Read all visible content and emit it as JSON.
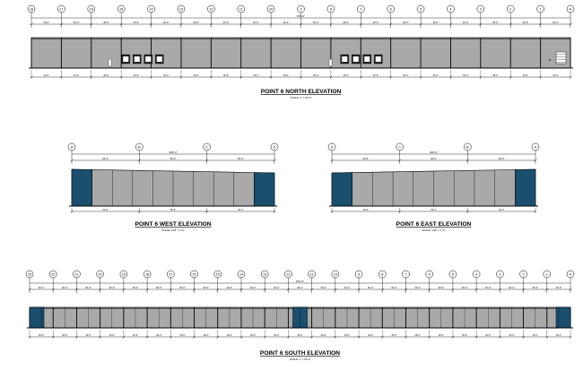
{
  "colors": {
    "wall": "#a9a9a9",
    "accent_panel": "#1a4f6e",
    "line": "#000000",
    "paper": "#ffffff"
  },
  "elevations": [
    {
      "id": "north",
      "title": "POINT 6 NORTH ELEVATION",
      "scale": "SCALE: 1\" = 30'-0\"",
      "grid_labels": [
        "18",
        "17",
        "16",
        "15",
        "14",
        "13",
        "12",
        "11",
        "10",
        "9",
        "8",
        "7",
        "6",
        "5",
        "4",
        "3",
        "2",
        "1",
        "A"
      ],
      "overall_dim": "670'-0\"",
      "bay_dim": "40'-0\"",
      "pier_dim": "2'-0\"",
      "dock_door_groups": 2,
      "doors_per_group": 4
    },
    {
      "id": "west",
      "title": "POINT 6 WEST ELEVATION",
      "scale": "SCALE: 1/16\" = 1'-0\"",
      "grid_labels": [
        "A",
        "B",
        "C",
        "D"
      ],
      "overall_dim": "240'-0\"",
      "bay_dim": "60'-0\"",
      "panel_count": 10
    },
    {
      "id": "east",
      "title": "POINT 6 EAST ELEVATION",
      "scale": "SCALE: 1/16\" = 1'-0\"",
      "grid_labels": [
        "D",
        "C",
        "B",
        "A"
      ],
      "overall_dim": "240'-0\"",
      "bay_dim": "60'-0\"",
      "panel_count": 10
    },
    {
      "id": "south",
      "title": "POINT 6 SOUTH ELEVATION",
      "scale": "SCALE: 1\" = 30'-0\"",
      "grid_labels": [
        "23",
        "22",
        "21",
        "20",
        "19",
        "18",
        "17",
        "16",
        "15",
        "14",
        "13",
        "12",
        "11",
        "10",
        "9",
        "8",
        "7",
        "6",
        "5",
        "4",
        "3",
        "2",
        "1",
        "A"
      ],
      "overall_dim": "670'-0\"",
      "bay_dim": "30'-0\"",
      "pier_dim": "2'-0\""
    }
  ]
}
